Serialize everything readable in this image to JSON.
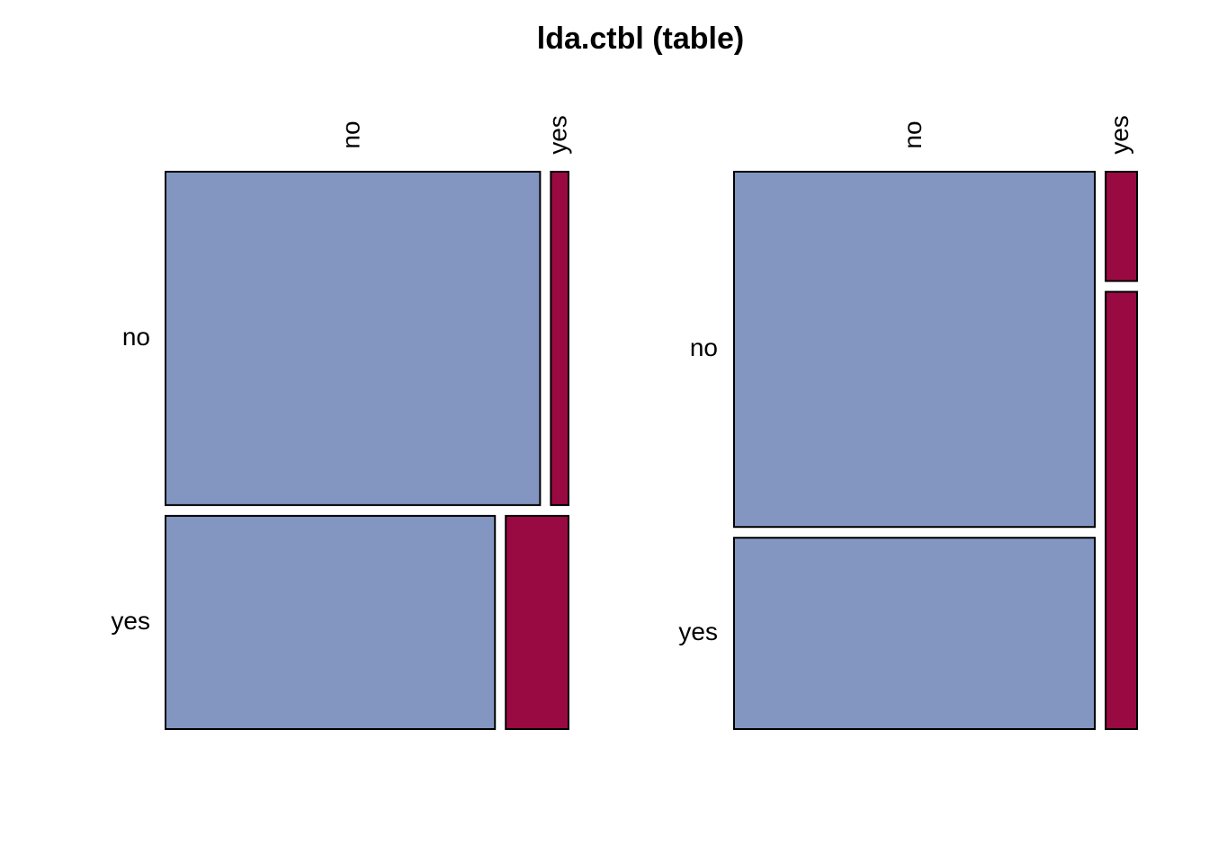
{
  "chart_data": [
    {
      "type": "mosaic",
      "title": "lda.ctbl (table)",
      "row_labels": [
        "no",
        "yes"
      ],
      "col_labels": [
        "no",
        "yes"
      ],
      "row_proportions": [
        0.61,
        0.39
      ],
      "col_proportions_within_row": [
        [
          0.955,
          0.045
        ],
        [
          0.84,
          0.16
        ]
      ],
      "fills": [
        [
          "#8396c2",
          "#990a42"
        ],
        [
          "#8396c2",
          "#990a42"
        ]
      ]
    },
    {
      "type": "mosaic",
      "col_labels": [
        "no",
        "yes"
      ],
      "row_labels": [
        "no",
        "yes"
      ],
      "col_proportions": [
        0.92,
        0.08
      ],
      "row_proportions_within_col": [
        [
          0.65,
          0.35
        ],
        [
          0.2,
          0.8
        ]
      ],
      "fills": [
        [
          "#8396c2",
          "#990a42"
        ],
        [
          "#8396c2",
          "#990a42"
        ]
      ]
    }
  ],
  "colors": {
    "blue": "#8396c2",
    "red": "#990a42"
  }
}
